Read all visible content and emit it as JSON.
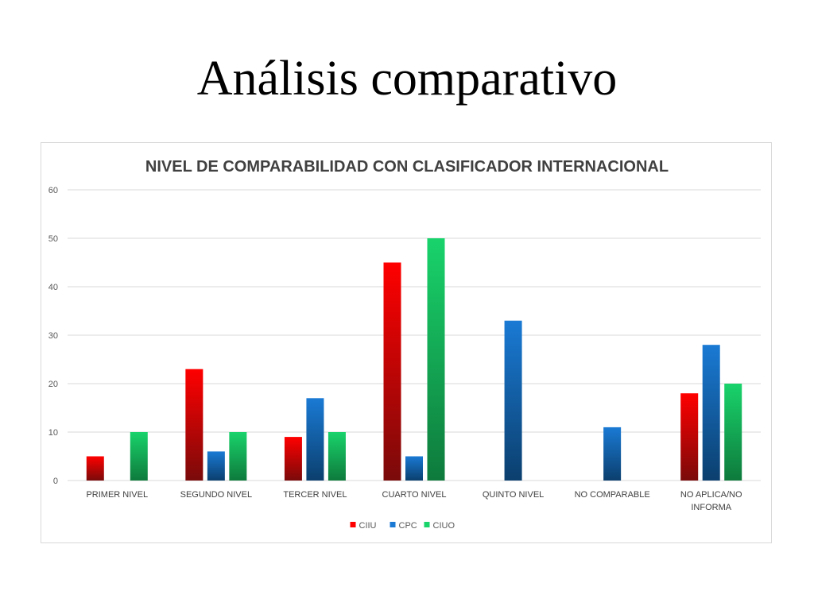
{
  "slide": {
    "title": "Análisis comparativo"
  },
  "chart_data": {
    "type": "bar",
    "title": "NIVEL DE COMPARABILIDAD CON CLASIFICADOR  INTERNACIONAL",
    "xlabel": "",
    "ylabel": "",
    "ylim": [
      0,
      60
    ],
    "yticks": [
      0,
      10,
      20,
      30,
      40,
      50,
      60
    ],
    "grid": true,
    "legend_position": "bottom",
    "categories": [
      [
        "PRIMER NIVEL"
      ],
      [
        "SEGUNDO NIVEL"
      ],
      [
        "TERCER NIVEL"
      ],
      [
        "CUARTO NIVEL"
      ],
      [
        "QUINTO NIVEL"
      ],
      [
        "NO COMPARABLE"
      ],
      [
        "NO APLICA/NO",
        "INFORMA"
      ]
    ],
    "series": [
      {
        "name": "CIIU",
        "color_top": "#ff0000",
        "color_bottom": "#7a0a0a",
        "values": [
          5,
          23,
          9,
          45,
          null,
          null,
          18
        ]
      },
      {
        "name": "CPC",
        "color_top": "#1a7ad4",
        "color_bottom": "#0b3f6e",
        "values": [
          null,
          6,
          17,
          5,
          33,
          11,
          28
        ]
      },
      {
        "name": "CIUO",
        "color_top": "#19d36b",
        "color_bottom": "#0e7a3c",
        "values": [
          10,
          10,
          10,
          50,
          null,
          null,
          20
        ]
      }
    ]
  }
}
